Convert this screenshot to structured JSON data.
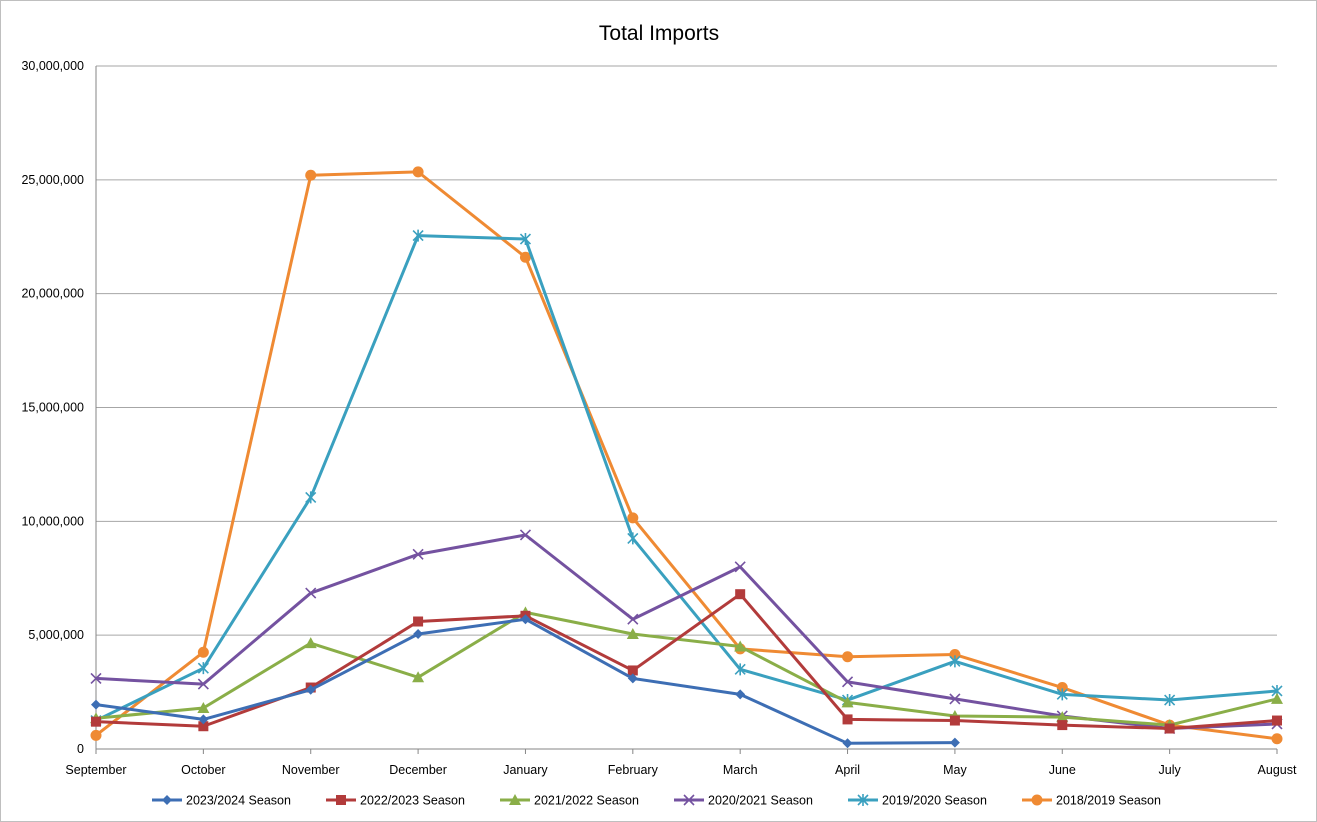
{
  "chart_data": {
    "type": "line",
    "title": "Total Imports",
    "xlabel": "",
    "ylabel": "",
    "categories": [
      "September",
      "October",
      "November",
      "December",
      "January",
      "February",
      "March",
      "April",
      "May",
      "June",
      "July",
      "August"
    ],
    "ylim": [
      0,
      30000000
    ],
    "yticks": [
      0,
      5000000,
      10000000,
      15000000,
      20000000,
      25000000,
      30000000
    ],
    "ytick_labels": [
      "0",
      "5,000,000",
      "10,000,000",
      "15,000,000",
      "20,000,000",
      "25,000,000",
      "30,000,000"
    ],
    "grid": "horizontal",
    "legend_position": "bottom",
    "series": [
      {
        "name": "2023/2024 Season",
        "color": "#3d6eb4",
        "marker": "diamond",
        "values": [
          1950000,
          1300000,
          2600000,
          5050000,
          5700000,
          3100000,
          2400000,
          250000,
          280000,
          null,
          null,
          null
        ]
      },
      {
        "name": "2022/2023 Season",
        "color": "#b23b3b",
        "marker": "square",
        "values": [
          1200000,
          1000000,
          2700000,
          5600000,
          5850000,
          3450000,
          6800000,
          1300000,
          1250000,
          1050000,
          900000,
          1250000
        ]
      },
      {
        "name": "2021/2022 Season",
        "color": "#8aae48",
        "marker": "triangle",
        "values": [
          1350000,
          1800000,
          4650000,
          3150000,
          6000000,
          5050000,
          4500000,
          2050000,
          1450000,
          1400000,
          1050000,
          2200000
        ]
      },
      {
        "name": "2020/2021 Season",
        "color": "#7452a0",
        "marker": "x",
        "values": [
          3100000,
          2850000,
          6850000,
          8550000,
          9400000,
          5700000,
          8000000,
          2950000,
          2200000,
          1450000,
          900000,
          1100000
        ]
      },
      {
        "name": "2019/2020 Season",
        "color": "#3aa0bf",
        "marker": "star",
        "values": [
          1250000,
          3550000,
          11050000,
          22550000,
          22400000,
          9250000,
          3500000,
          2150000,
          3850000,
          2400000,
          2150000,
          2550000
        ]
      },
      {
        "name": "2018/2019 Season",
        "color": "#ef8a33",
        "marker": "circle",
        "values": [
          600000,
          4250000,
          25200000,
          25350000,
          21600000,
          10150000,
          4400000,
          4050000,
          4150000,
          2700000,
          1050000,
          450000
        ]
      }
    ]
  }
}
